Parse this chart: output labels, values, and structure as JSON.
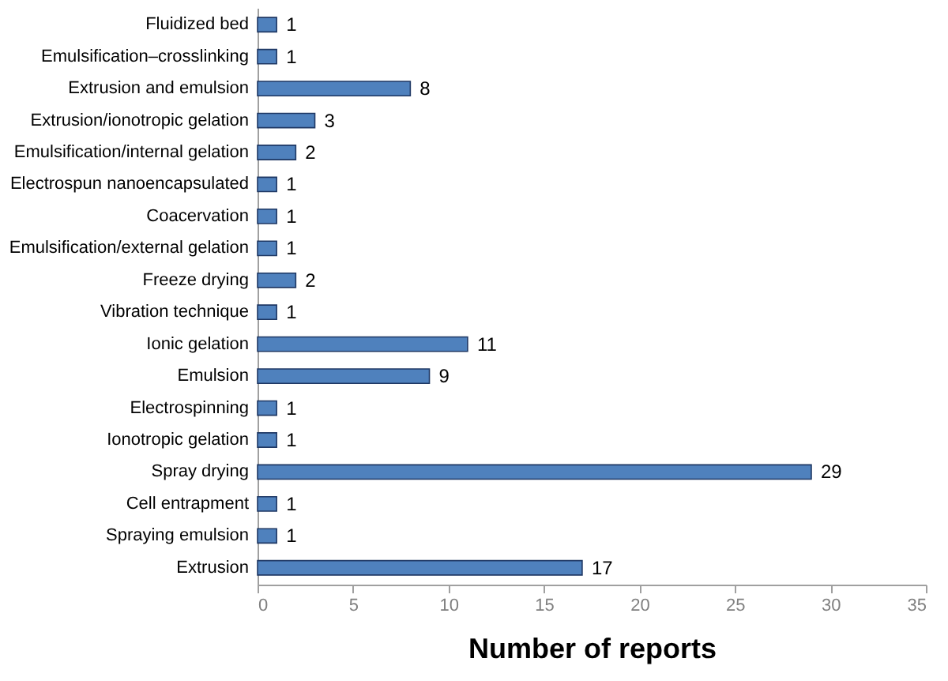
{
  "chart_data": {
    "type": "bar",
    "orientation": "horizontal",
    "xlabel": "Number of reports",
    "categories": [
      "Fluidized bed",
      "Emulsification–crosslinking",
      "Extrusion and emulsion",
      "Extrusion/ionotropic gelation",
      "Emulsification/internal gelation",
      "Electrospun nanoencapsulated",
      "Coacervation",
      "Emulsification/external gelation",
      "Freeze drying",
      "Vibration technique",
      "Ionic gelation",
      "Emulsion",
      "Electrospinning",
      "Ionotropic gelation",
      "Spray drying",
      "Cell entrapment",
      "Spraying emulsion",
      "Extrusion"
    ],
    "values": [
      1,
      1,
      8,
      3,
      2,
      1,
      1,
      1,
      2,
      1,
      11,
      9,
      1,
      1,
      29,
      1,
      1,
      17
    ],
    "color": "#4f81bd",
    "xlim": [
      0,
      35
    ],
    "xticks": [
      0,
      5,
      10,
      15,
      20,
      25,
      30,
      35
    ],
    "data_labels": true,
    "grid": false
  }
}
